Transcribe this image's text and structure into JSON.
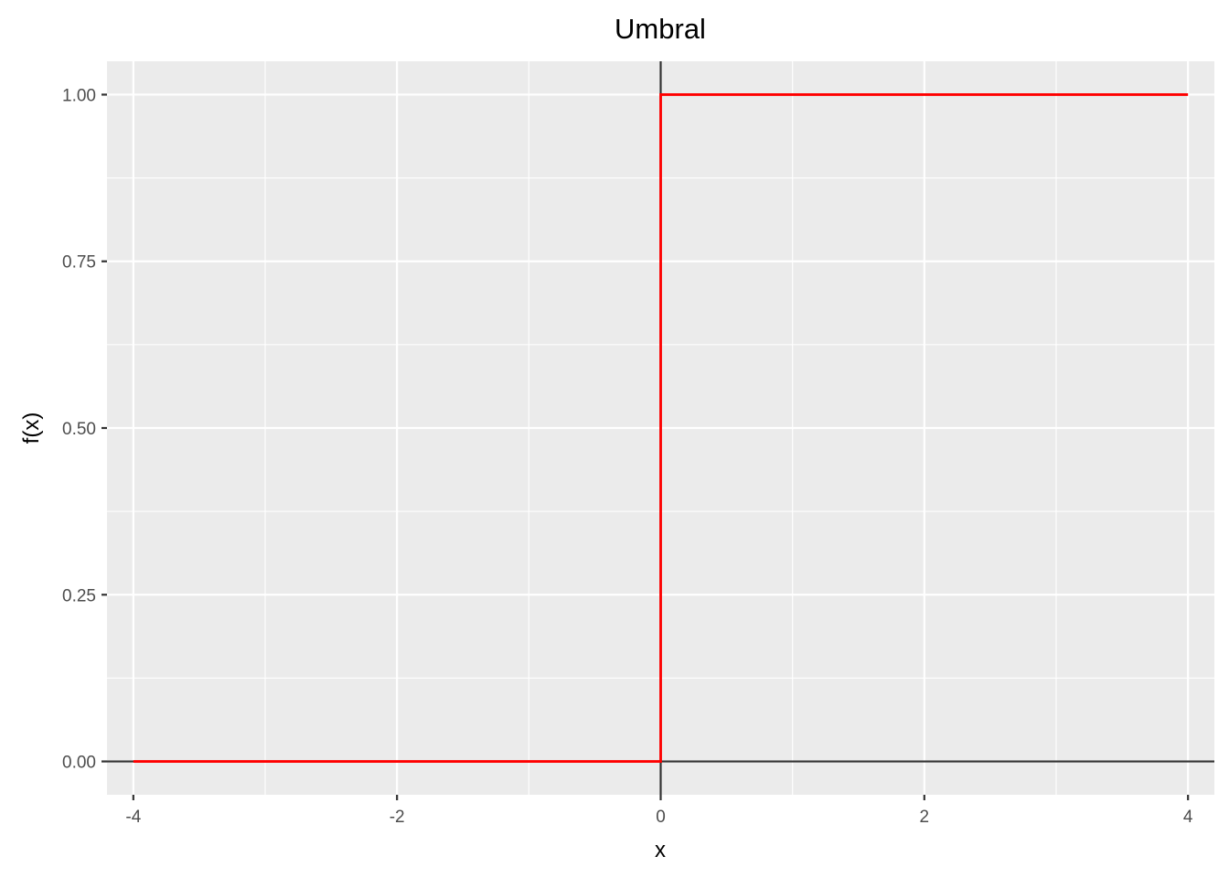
{
  "chart_data": {
    "type": "line",
    "title": "Umbral",
    "xlabel": "x",
    "ylabel": "f(x)",
    "xlim": [
      -4.2,
      4.2
    ],
    "ylim": [
      -0.05,
      1.05
    ],
    "x_ticks": [
      -4,
      -2,
      0,
      2,
      4
    ],
    "x_tick_labels": [
      "-4",
      "-2",
      "0",
      "2",
      "4"
    ],
    "x_minor": [
      -3,
      -1,
      1,
      3
    ],
    "y_ticks": [
      0,
      0.25,
      0.5,
      0.75,
      1
    ],
    "y_tick_labels": [
      "0.00",
      "0.25",
      "0.50",
      "0.75",
      "1.00"
    ],
    "y_minor": [
      0.125,
      0.375,
      0.625,
      0.875
    ],
    "grid": true,
    "reference_lines": {
      "hline": 0,
      "vline": 0,
      "color": "#333333"
    },
    "background": "#EBEBEB",
    "series": [
      {
        "color": "#FF0000",
        "x": [
          -4,
          0,
          0,
          4
        ],
        "y": [
          0,
          0,
          1,
          1
        ]
      }
    ]
  }
}
